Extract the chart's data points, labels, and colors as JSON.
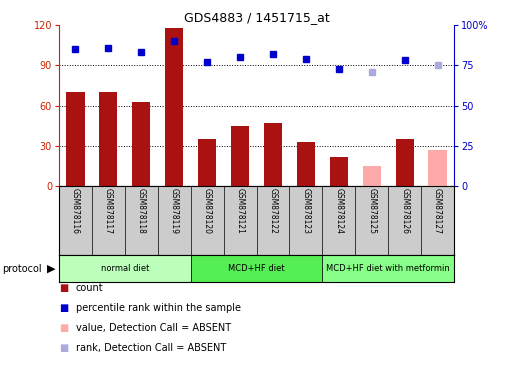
{
  "title": "GDS4883 / 1451715_at",
  "samples": [
    "GSM878116",
    "GSM878117",
    "GSM878118",
    "GSM878119",
    "GSM878120",
    "GSM878121",
    "GSM878122",
    "GSM878123",
    "GSM878124",
    "GSM878125",
    "GSM878126",
    "GSM878127"
  ],
  "count_values": [
    70,
    70,
    63,
    118,
    35,
    45,
    47,
    33,
    22,
    null,
    35,
    null
  ],
  "count_absent_values": [
    null,
    null,
    null,
    null,
    null,
    null,
    null,
    null,
    null,
    15,
    null,
    27
  ],
  "percentile_values": [
    85,
    86,
    83,
    90,
    77,
    80,
    82,
    79,
    73,
    null,
    78,
    null
  ],
  "percentile_absent_values": [
    null,
    null,
    null,
    null,
    null,
    null,
    null,
    null,
    null,
    71,
    null,
    75
  ],
  "bar_color_present": "#aa1111",
  "bar_color_absent": "#ffaaaa",
  "dot_color_present": "#0000cc",
  "dot_color_absent": "#aaaadd",
  "protocols": [
    {
      "label": "normal diet",
      "start": 0,
      "end": 4,
      "color": "#bbffbb"
    },
    {
      "label": "MCD+HF diet",
      "start": 4,
      "end": 8,
      "color": "#55ee55"
    },
    {
      "label": "MCD+HF diet with metformin",
      "start": 8,
      "end": 12,
      "color": "#88ff88"
    }
  ],
  "ylim_left": [
    0,
    120
  ],
  "ylim_right": [
    0,
    100
  ],
  "yticks_left": [
    0,
    30,
    60,
    90,
    120
  ],
  "yticks_right": [
    0,
    25,
    50,
    75,
    100
  ],
  "yticklabels_right": [
    "0",
    "25",
    "50",
    "75",
    "100%"
  ],
  "left_tick_color": "#cc2200",
  "right_tick_color": "#0000cc",
  "bg_color": "#cccccc"
}
